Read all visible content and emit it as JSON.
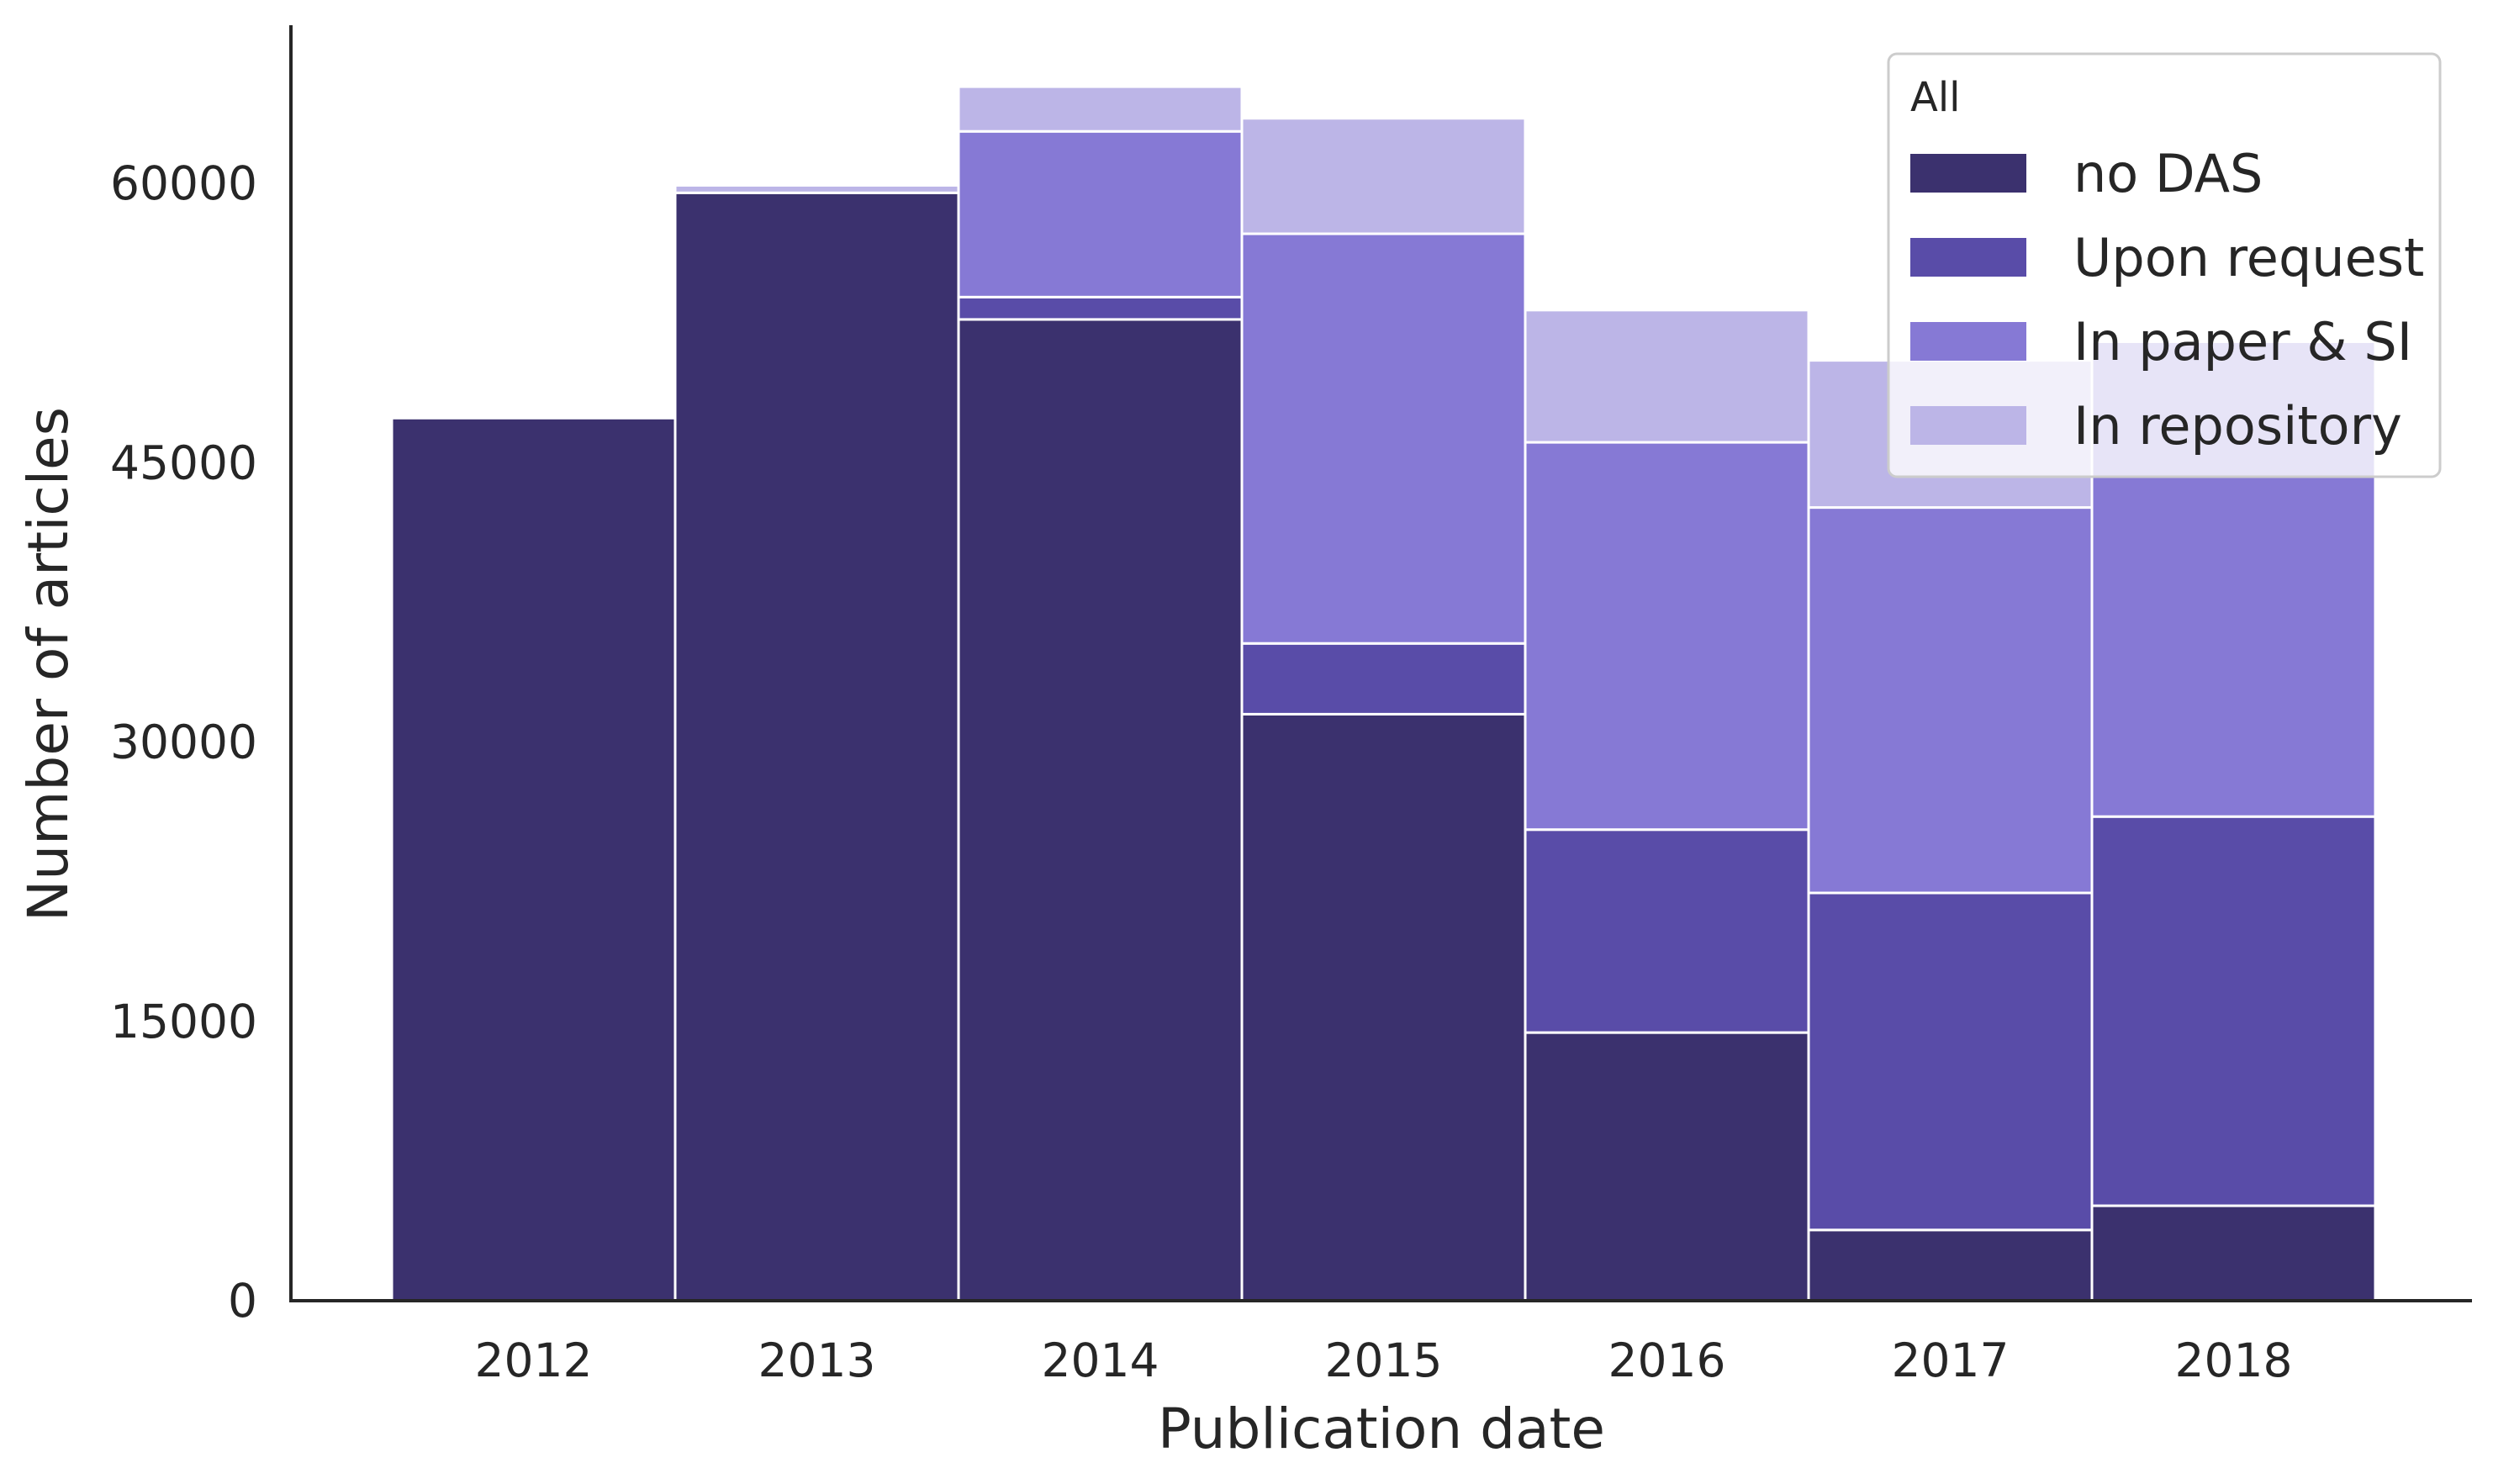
{
  "chart_data": {
    "type": "bar",
    "stacked": true,
    "xlabel": "Publication date",
    "ylabel": "Number of articles",
    "categories": [
      "2012",
      "2013",
      "2014",
      "2015",
      "2016",
      "2017",
      "2018"
    ],
    "ylim": [
      0,
      68500
    ],
    "yticks": [
      0,
      15000,
      30000,
      45000,
      60000
    ],
    "grid": false,
    "legend": {
      "title": "All",
      "position": "top-right"
    },
    "series": [
      {
        "name": "no DAS",
        "color": "#3b316e",
        "values": [
          47400,
          59500,
          52700,
          31500,
          14400,
          3800,
          5100
        ]
      },
      {
        "name": "Upon request",
        "color": "#594ca8",
        "values": [
          0,
          0,
          1200,
          3800,
          10900,
          18100,
          20900
        ]
      },
      {
        "name": "In paper & SI",
        "color": "#8679d5",
        "values": [
          0,
          0,
          8900,
          22000,
          20800,
          20700,
          25500
        ]
      },
      {
        "name": "In repository",
        "color": "#bcb5e7",
        "values": [
          0,
          400,
          2400,
          6200,
          7100,
          7900,
          0
        ]
      }
    ]
  }
}
